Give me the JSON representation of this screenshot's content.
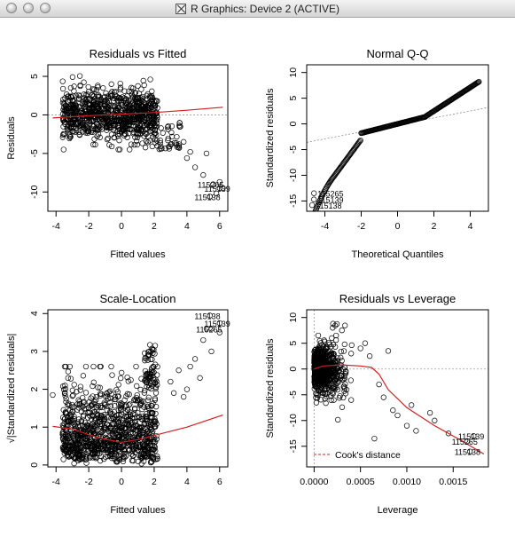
{
  "window": {
    "title": "R Graphics: Device 2 (ACTIVE)",
    "controls": [
      "close",
      "minimize",
      "zoom"
    ]
  },
  "chart_data": [
    {
      "type": "scatter",
      "title": "Residuals vs Fitted",
      "xlabel": "Fitted values",
      "ylabel": "Residuals",
      "xlim": [
        -4.5,
        6.5
      ],
      "ylim": [
        -12.5,
        6.5
      ],
      "xticks": [
        -4,
        -2,
        0,
        2,
        4,
        6
      ],
      "yticks": [
        -10,
        -5,
        0,
        5
      ],
      "smooth_line": [
        [
          -4.2,
          -0.4
        ],
        [
          -2,
          -0.1
        ],
        [
          0,
          0.1
        ],
        [
          2,
          0.3
        ],
        [
          4,
          0.6
        ],
        [
          6.2,
          1.0
        ]
      ],
      "outliers": [
        [
          3.5,
          -4.2
        ],
        [
          4.0,
          -5.6
        ],
        [
          4.5,
          -6.8
        ],
        [
          5.0,
          -7.8
        ],
        [
          5.2,
          -5.0
        ],
        [
          5.6,
          -9.0
        ],
        [
          6.0,
          -8.7
        ],
        [
          6.2,
          -9.5
        ],
        [
          5.4,
          -10.6
        ],
        [
          5.8,
          -10.2
        ],
        [
          3.8,
          -3.5
        ],
        [
          4.2,
          -4.8
        ]
      ],
      "annotations": [
        {
          "label": "115265",
          "x": 5.6,
          "y": -9.0
        },
        {
          "label": "115139",
          "x": 6.0,
          "y": -9.5
        },
        {
          "label": "115138",
          "x": 5.4,
          "y": -10.6
        }
      ]
    },
    {
      "type": "scatter",
      "title": "Normal Q-Q",
      "xlabel": "Theoretical Quantiles",
      "ylabel": "Standardized residuals",
      "xlim": [
        -5,
        5
      ],
      "ylim": [
        -17,
        11.5
      ],
      "xticks": [
        -4,
        -2,
        0,
        2,
        4
      ],
      "yticks": [
        -15,
        -10,
        -5,
        0,
        5,
        10
      ],
      "reference_line": [
        [
          -5,
          -3.6
        ],
        [
          5,
          3.2
        ]
      ],
      "annotations": [
        {
          "label": "115265",
          "x": -4.6,
          "y": -13.5
        },
        {
          "label": "115139",
          "x": -4.6,
          "y": -14.7
        },
        {
          "label": "115138",
          "x": -4.7,
          "y": -15.8
        }
      ]
    },
    {
      "type": "scatter",
      "title": "Scale-Location",
      "xlabel": "Fitted values",
      "ylabel": "√|Standardized residuals|",
      "xlim": [
        -4.5,
        6.5
      ],
      "ylim": [
        -0.05,
        4.1
      ],
      "xticks": [
        -4,
        -2,
        0,
        2,
        4,
        6
      ],
      "yticks": [
        0,
        1,
        2,
        3,
        4
      ],
      "smooth_line": [
        [
          -4.2,
          1.02
        ],
        [
          -3,
          0.95
        ],
        [
          -2,
          0.8
        ],
        [
          -1,
          0.68
        ],
        [
          0,
          0.6
        ],
        [
          1,
          0.67
        ],
        [
          2,
          0.78
        ],
        [
          4,
          1.0
        ],
        [
          6.2,
          1.32
        ]
      ],
      "outliers": [
        [
          3.0,
          2.2
        ],
        [
          3.5,
          2.5
        ],
        [
          4.0,
          2.0
        ],
        [
          4.5,
          2.8
        ],
        [
          5.0,
          3.3
        ],
        [
          5.5,
          3.0
        ],
        [
          6.0,
          3.5
        ],
        [
          3.2,
          1.9
        ],
        [
          4.2,
          2.6
        ],
        [
          5.2,
          3.6
        ],
        [
          4.8,
          2.3
        ],
        [
          3.8,
          1.8
        ]
      ],
      "annotations": [
        {
          "label": "115138",
          "x": 5.4,
          "y": 3.95
        },
        {
          "label": "115139",
          "x": 6.0,
          "y": 3.75
        },
        {
          "label": "115265",
          "x": 5.5,
          "y": 3.6
        }
      ]
    },
    {
      "type": "scatter",
      "title": "Residuals vs Leverage",
      "xlabel": "Leverage",
      "ylabel": "Standardized residuals",
      "xlim": [
        -8e-05,
        0.00188
      ],
      "ylim": [
        -19,
        11.5
      ],
      "xticks": [
        0.0,
        0.0005,
        0.001,
        0.0015
      ],
      "xtick_labels": [
        "0.0000",
        "0.0005",
        "0.0010",
        "0.0015"
      ],
      "yticks": [
        -15,
        -10,
        -5,
        0,
        5,
        10
      ],
      "smooth_line": [
        [
          0.0,
          0.0
        ],
        [
          0.0001,
          0.6
        ],
        [
          0.0003,
          0.8
        ],
        [
          0.0005,
          0.6
        ],
        [
          0.00062,
          0.3
        ],
        [
          0.0007,
          -1.0
        ],
        [
          0.0008,
          -4.0
        ],
        [
          0.001,
          -7.5
        ],
        [
          0.0013,
          -11.0
        ],
        [
          0.0016,
          -14.0
        ],
        [
          0.00183,
          -16.5
        ]
      ],
      "outliers": [
        [
          0.0004,
          3.0
        ],
        [
          0.0005,
          4.0
        ],
        [
          0.00055,
          5.0
        ],
        [
          0.0006,
          2.5
        ],
        [
          0.0007,
          -3.0
        ],
        [
          0.00075,
          -5.5
        ],
        [
          0.0008,
          3.5
        ],
        [
          0.00085,
          -8.0
        ],
        [
          0.0009,
          -9.0
        ],
        [
          0.001,
          -11.0
        ],
        [
          0.00105,
          -7.0
        ],
        [
          0.0011,
          -12.0
        ],
        [
          0.00125,
          -8.5
        ],
        [
          0.0013,
          -10.0
        ],
        [
          0.00145,
          -12.5
        ],
        [
          0.0004,
          -6.0
        ],
        [
          0.00035,
          -4.0
        ],
        [
          0.00065,
          -13.5
        ],
        [
          0.0003,
          7.5
        ],
        [
          0.0002,
          8.0
        ]
      ],
      "annotations": [
        {
          "label": "115139",
          "x": 0.00172,
          "y": -13.0
        },
        {
          "label": "115265",
          "x": 0.00165,
          "y": -14.0
        },
        {
          "label": "115138",
          "x": 0.00168,
          "y": -16.0
        }
      ],
      "legend": {
        "label": "Cook's distance",
        "position": "bottom-left"
      }
    }
  ]
}
